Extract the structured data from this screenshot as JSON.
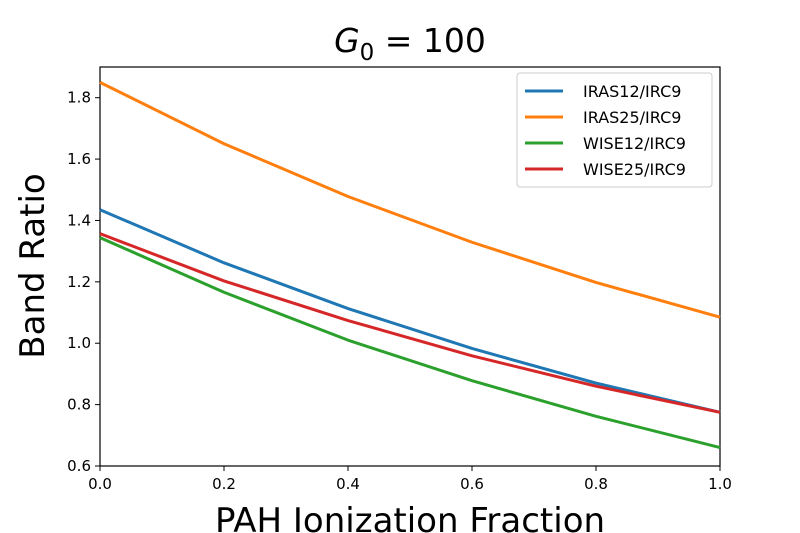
{
  "chart_data": {
    "type": "line",
    "title_main": "G",
    "title_sub": "0",
    "title_rest": " = 100",
    "xlabel": "PAH Ionization Fraction",
    "ylabel": "Band Ratio",
    "xlim": [
      0.0,
      1.0
    ],
    "ylim": [
      0.6,
      1.9
    ],
    "xticks": [
      0.0,
      0.2,
      0.4,
      0.6,
      0.8,
      1.0
    ],
    "xtick_labels": [
      "0.0",
      "0.2",
      "0.4",
      "0.6",
      "0.8",
      "1.0"
    ],
    "yticks": [
      0.6,
      0.8,
      1.0,
      1.2,
      1.4,
      1.6,
      1.8
    ],
    "ytick_labels": [
      "0.6",
      "0.8",
      "1.0",
      "1.2",
      "1.4",
      "1.6",
      "1.8"
    ],
    "grid": false,
    "legend_position": "top-right",
    "x": [
      0.0,
      0.2,
      0.4,
      0.6,
      0.8,
      1.0
    ],
    "series": [
      {
        "name": "IRAS12/IRC9",
        "color": "#1f77b4",
        "values": [
          1.435,
          1.262,
          1.113,
          0.983,
          0.87,
          0.775
        ]
      },
      {
        "name": "IRAS25/IRC9",
        "color": "#ff7f0e",
        "values": [
          1.85,
          1.65,
          1.478,
          1.329,
          1.198,
          1.085
        ]
      },
      {
        "name": "WISE12/IRC9",
        "color": "#2ca02c",
        "values": [
          1.344,
          1.166,
          1.01,
          0.878,
          0.762,
          0.66
        ]
      },
      {
        "name": "WISE25/IRC9",
        "color": "#d62728",
        "values": [
          1.357,
          1.203,
          1.074,
          0.959,
          0.86,
          0.775
        ]
      }
    ]
  }
}
